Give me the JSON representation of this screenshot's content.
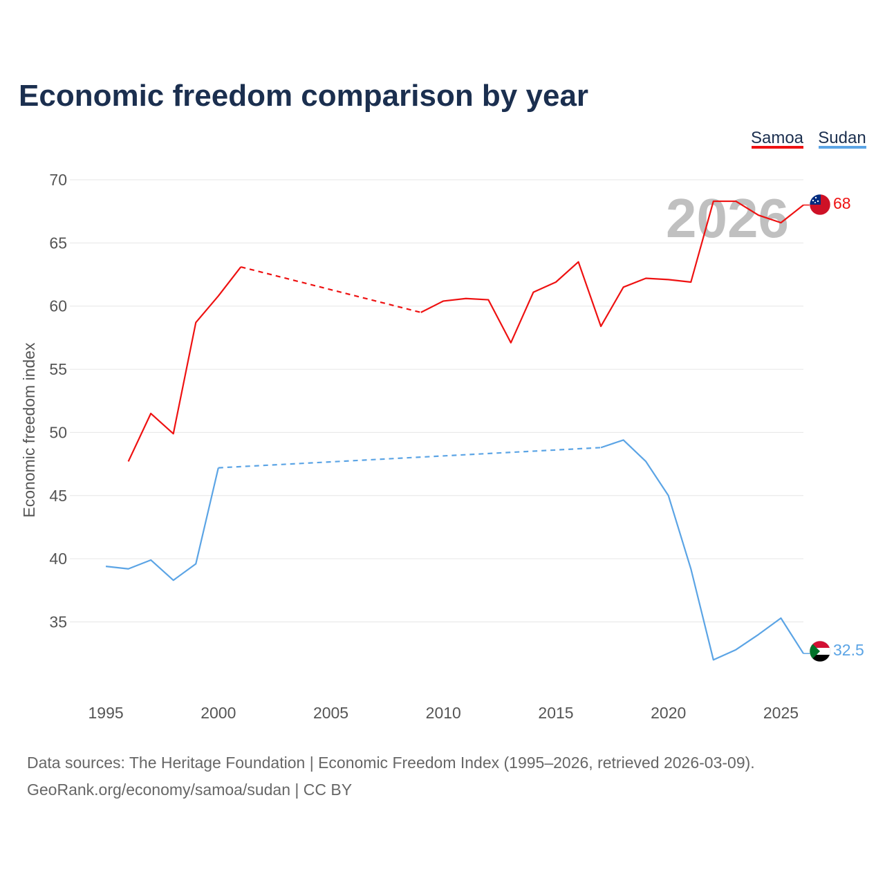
{
  "title": "Economic freedom comparison by year",
  "watermark_year": "2026",
  "source_line": "Data sources: The Heritage Foundation | Economic Freedom Index (1995–2026, retrieved 2026-03-09).",
  "url_line": "GeoRank.org/economy/samoa/sudan | CC BY",
  "colors": {
    "samoa": "#ee1111",
    "sudan": "#5ba4e5",
    "title": "#1b2f4f",
    "axis_text": "#555555",
    "grid": "#e6e6e6",
    "watermark": "#bdbdbd"
  },
  "chart_data": {
    "type": "line",
    "title": "Economic freedom comparison by year",
    "xlabel": "",
    "ylabel": "Economic freedom index",
    "xlim": [
      1993.4,
      2026.0
    ],
    "ylim": [
      29.5,
      70
    ],
    "x_ticks": [
      1995,
      2000,
      2005,
      2010,
      2015,
      2020,
      2025
    ],
    "y_ticks": [
      35,
      40,
      45,
      50,
      55,
      60,
      65,
      70
    ],
    "grid": true,
    "legend_position": "top-right",
    "series": [
      {
        "name": "Samoa",
        "color": "#ee1111",
        "end_label": "68",
        "segments": [
          {
            "style": "solid",
            "points": [
              [
                1996,
                47.7
              ],
              [
                1997,
                51.5
              ],
              [
                1998,
                49.9
              ],
              [
                1999,
                58.7
              ],
              [
                2000,
                60.8
              ],
              [
                2001,
                63.1
              ]
            ]
          },
          {
            "style": "dashed",
            "points": [
              [
                2001,
                63.1
              ],
              [
                2009,
                59.5
              ]
            ]
          },
          {
            "style": "solid",
            "points": [
              [
                2009,
                59.5
              ],
              [
                2010,
                60.4
              ],
              [
                2011,
                60.6
              ],
              [
                2012,
                60.5
              ],
              [
                2013,
                57.1
              ],
              [
                2014,
                61.1
              ],
              [
                2015,
                61.9
              ],
              [
                2016,
                63.5
              ],
              [
                2017,
                58.4
              ],
              [
                2018,
                61.5
              ],
              [
                2019,
                62.2
              ],
              [
                2020,
                62.1
              ],
              [
                2021,
                61.9
              ],
              [
                2022,
                68.3
              ],
              [
                2023,
                68.3
              ],
              [
                2024,
                67.2
              ],
              [
                2025,
                66.6
              ],
              [
                2026,
                68.0
              ]
            ]
          }
        ]
      },
      {
        "name": "Sudan",
        "color": "#5ba4e5",
        "end_label": "32.5",
        "segments": [
          {
            "style": "solid",
            "points": [
              [
                1995,
                39.4
              ],
              [
                1996,
                39.2
              ],
              [
                1997,
                39.9
              ],
              [
                1998,
                38.3
              ],
              [
                1999,
                39.6
              ],
              [
                2000,
                47.2
              ]
            ]
          },
          {
            "style": "dashed",
            "points": [
              [
                2000,
                47.2
              ],
              [
                2017,
                48.8
              ]
            ]
          },
          {
            "style": "solid",
            "points": [
              [
                2017,
                48.8
              ],
              [
                2018,
                49.4
              ],
              [
                2019,
                47.7
              ],
              [
                2020,
                45.0
              ],
              [
                2021,
                39.2
              ],
              [
                2022,
                32.0
              ],
              [
                2023,
                32.8
              ],
              [
                2024,
                34.0
              ],
              [
                2025,
                35.3
              ],
              [
                2026,
                32.5
              ]
            ]
          }
        ]
      }
    ]
  }
}
